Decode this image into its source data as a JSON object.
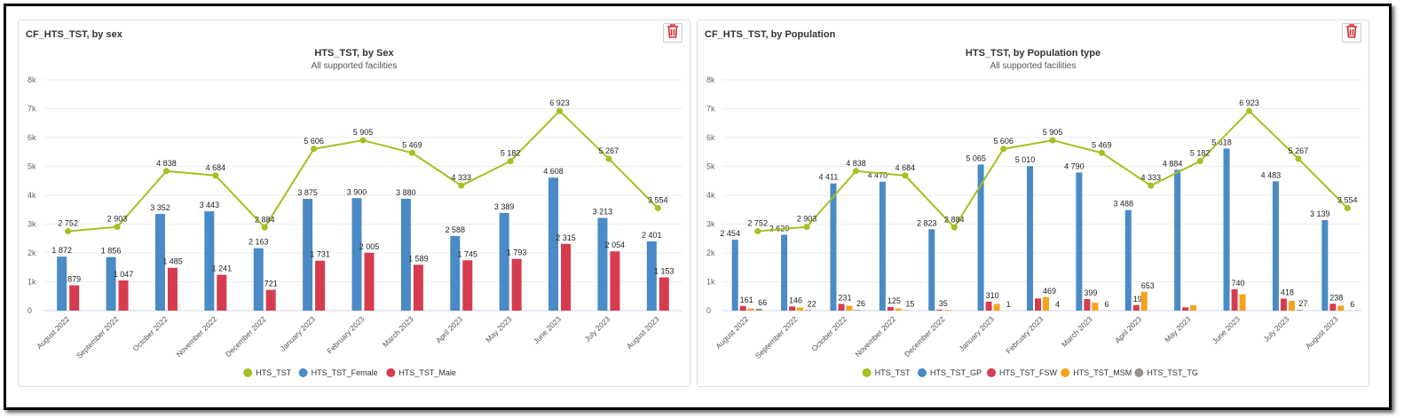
{
  "panels": [
    {
      "header": "CF_HTS_TST, by sex",
      "delete_icon": "trash-icon"
    },
    {
      "header": "CF_HTS_TST, by Population",
      "delete_icon": "trash-icon"
    }
  ],
  "chart_data": [
    {
      "type": "bar+line",
      "title": "HTS_TST, by Sex",
      "subtitle": "All supported facilities",
      "ylim": [
        0,
        8000
      ],
      "yticks": [
        "0",
        "1k",
        "2k",
        "3k",
        "4k",
        "5k",
        "6k",
        "7k",
        "8k"
      ],
      "categories": [
        "August 2022",
        "September 2022",
        "October 2022",
        "November 2022",
        "December 2022",
        "January 2023",
        "February 2023",
        "March 2023",
        "April 2023",
        "May 2023",
        "June 2023",
        "July 2023",
        "August 2023"
      ],
      "line": {
        "name": "HTS_TST",
        "color": "#a4c021",
        "values": [
          2752,
          2903,
          4838,
          4684,
          2884,
          5606,
          5905,
          5469,
          4333,
          5182,
          6923,
          5267,
          3554
        ]
      },
      "series": [
        {
          "name": "HTS_TST_Female",
          "color": "#4a8ac6",
          "values": [
            1872,
            1856,
            3352,
            3443,
            2163,
            3875,
            3900,
            3880,
            2588,
            3389,
            4608,
            3213,
            2401
          ]
        },
        {
          "name": "HTS_TST_Male",
          "color": "#d63c4e",
          "values": [
            879,
            1047,
            1485,
            1241,
            721,
            1731,
            2005,
            1589,
            1745,
            1793,
            2315,
            2054,
            1153
          ]
        }
      ],
      "legend": "bottom"
    },
    {
      "type": "bar+line",
      "title": "HTS_TST, by Population type",
      "subtitle": "All supported facilities",
      "ylim": [
        0,
        8000
      ],
      "yticks": [
        "0",
        "1k",
        "2k",
        "3k",
        "4k",
        "5k",
        "6k",
        "7k",
        "8k"
      ],
      "categories": [
        "August 2022",
        "September 2022",
        "October 2022",
        "November 2022",
        "December 2022",
        "January 2023",
        "February 2023",
        "March 2023",
        "April 2023",
        "May 2023",
        "June 2023",
        "July 2023",
        "August 2023"
      ],
      "line": {
        "name": "HTS_TST",
        "color": "#a4c021",
        "values": [
          2752,
          2903,
          4838,
          4684,
          2884,
          5606,
          5905,
          5469,
          4333,
          5182,
          6923,
          5267,
          3554
        ]
      },
      "series": [
        {
          "name": "HTS_TST_GP",
          "color": "#4a8ac6",
          "values": [
            2454,
            2629,
            4411,
            4470,
            2823,
            5065,
            5010,
            4790,
            3488,
            4884,
            5618,
            4483,
            3139
          ]
        },
        {
          "name": "HTS_TST_FSW",
          "color": "#d63c4e",
          "values": [
            161,
            146,
            231,
            125,
            35,
            310,
            422,
            399,
            192,
            113,
            740,
            418,
            238
          ]
        },
        {
          "name": "HTS_TST_MSM",
          "color": "#f7a21b",
          "values": [
            71,
            106,
            170,
            74,
            24,
            230,
            469,
            274,
            653,
            185,
            565,
            339,
            171
          ]
        },
        {
          "name": "HTS_TST_TG",
          "color": "#999088",
          "values": [
            66,
            22,
            26,
            15,
            2,
            1,
            4,
            6,
            0,
            0,
            0,
            27,
            6
          ]
        }
      ],
      "legend": "bottom"
    }
  ]
}
